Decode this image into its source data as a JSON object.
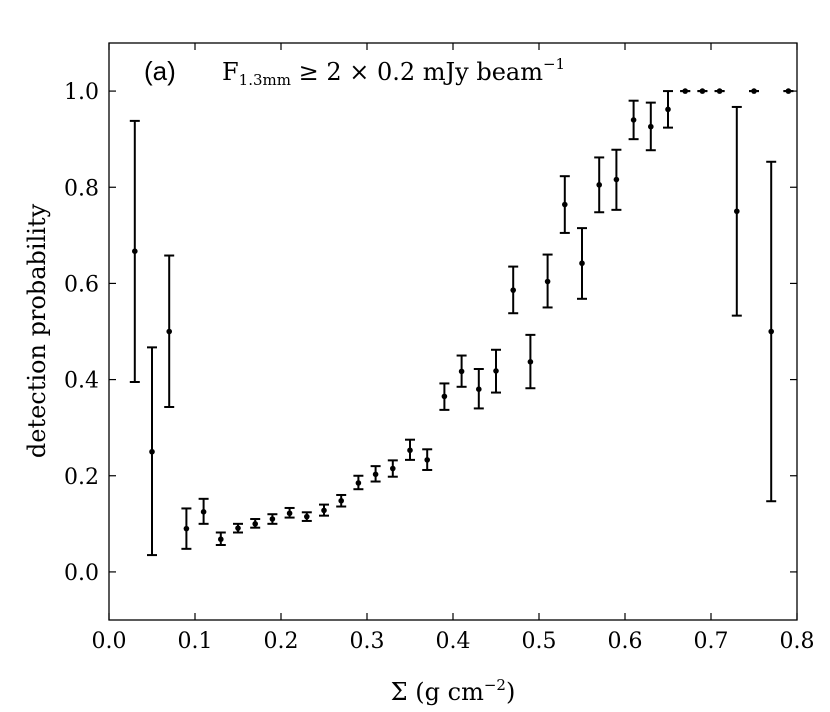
{
  "chart_data": {
    "type": "scatter",
    "panel_label": "(a)",
    "title": {
      "main": "F",
      "subscript": "1.3mm",
      "rest": " ≥ 2 × 0.2 mJy beam",
      "superscript": "−1"
    },
    "xlabel": {
      "main": "Σ (g cm",
      "superscript": "−2",
      "end": ")"
    },
    "ylabel": "detection probability",
    "xlim": [
      0.0,
      0.8
    ],
    "ylim": [
      -0.1,
      1.1
    ],
    "xticks": [
      "0.0",
      "0.1",
      "0.2",
      "0.3",
      "0.4",
      "0.5",
      "0.6",
      "0.7",
      "0.8"
    ],
    "yticks": [
      "0.0",
      "0.2",
      "0.4",
      "0.6",
      "0.8",
      "1.0"
    ],
    "grid": false,
    "series": [
      {
        "marker_color": "#000000",
        "points": [
          {
            "x": 0.03,
            "y": 0.667,
            "lo": 0.395,
            "hi": 0.938
          },
          {
            "x": 0.05,
            "y": 0.25,
            "lo": 0.035,
            "hi": 0.467
          },
          {
            "x": 0.07,
            "y": 0.5,
            "lo": 0.343,
            "hi": 0.658
          },
          {
            "x": 0.09,
            "y": 0.09,
            "lo": 0.048,
            "hi": 0.132
          },
          {
            "x": 0.11,
            "y": 0.125,
            "lo": 0.1,
            "hi": 0.152
          },
          {
            "x": 0.13,
            "y": 0.068,
            "lo": 0.056,
            "hi": 0.082
          },
          {
            "x": 0.15,
            "y": 0.091,
            "lo": 0.082,
            "hi": 0.1
          },
          {
            "x": 0.17,
            "y": 0.1,
            "lo": 0.092,
            "hi": 0.11
          },
          {
            "x": 0.19,
            "y": 0.11,
            "lo": 0.1,
            "hi": 0.12
          },
          {
            "x": 0.21,
            "y": 0.122,
            "lo": 0.113,
            "hi": 0.133
          },
          {
            "x": 0.23,
            "y": 0.115,
            "lo": 0.106,
            "hi": 0.124
          },
          {
            "x": 0.25,
            "y": 0.128,
            "lo": 0.117,
            "hi": 0.14
          },
          {
            "x": 0.27,
            "y": 0.148,
            "lo": 0.136,
            "hi": 0.16
          },
          {
            "x": 0.29,
            "y": 0.185,
            "lo": 0.172,
            "hi": 0.2
          },
          {
            "x": 0.31,
            "y": 0.203,
            "lo": 0.188,
            "hi": 0.22
          },
          {
            "x": 0.33,
            "y": 0.215,
            "lo": 0.198,
            "hi": 0.232
          },
          {
            "x": 0.35,
            "y": 0.253,
            "lo": 0.233,
            "hi": 0.275
          },
          {
            "x": 0.37,
            "y": 0.233,
            "lo": 0.212,
            "hi": 0.255
          },
          {
            "x": 0.39,
            "y": 0.365,
            "lo": 0.337,
            "hi": 0.392
          },
          {
            "x": 0.41,
            "y": 0.417,
            "lo": 0.385,
            "hi": 0.45
          },
          {
            "x": 0.43,
            "y": 0.38,
            "lo": 0.34,
            "hi": 0.422
          },
          {
            "x": 0.45,
            "y": 0.418,
            "lo": 0.373,
            "hi": 0.462
          },
          {
            "x": 0.47,
            "y": 0.586,
            "lo": 0.538,
            "hi": 0.635
          },
          {
            "x": 0.49,
            "y": 0.437,
            "lo": 0.382,
            "hi": 0.493
          },
          {
            "x": 0.51,
            "y": 0.604,
            "lo": 0.55,
            "hi": 0.66
          },
          {
            "x": 0.53,
            "y": 0.764,
            "lo": 0.705,
            "hi": 0.823
          },
          {
            "x": 0.55,
            "y": 0.642,
            "lo": 0.568,
            "hi": 0.715
          },
          {
            "x": 0.57,
            "y": 0.805,
            "lo": 0.748,
            "hi": 0.862
          },
          {
            "x": 0.59,
            "y": 0.816,
            "lo": 0.753,
            "hi": 0.878
          },
          {
            "x": 0.61,
            "y": 0.94,
            "lo": 0.9,
            "hi": 0.98
          },
          {
            "x": 0.63,
            "y": 0.926,
            "lo": 0.877,
            "hi": 0.976
          },
          {
            "x": 0.65,
            "y": 0.962,
            "lo": 0.924,
            "hi": 1.0
          },
          {
            "x": 0.67,
            "y": 1.0,
            "lo": 1.0,
            "hi": 1.0
          },
          {
            "x": 0.69,
            "y": 1.0,
            "lo": 1.0,
            "hi": 1.0
          },
          {
            "x": 0.71,
            "y": 1.0,
            "lo": 1.0,
            "hi": 1.0
          },
          {
            "x": 0.73,
            "y": 0.75,
            "lo": 0.533,
            "hi": 0.967
          },
          {
            "x": 0.75,
            "y": 1.0,
            "lo": 1.0,
            "hi": 1.0
          },
          {
            "x": 0.77,
            "y": 0.5,
            "lo": 0.147,
            "hi": 0.853
          },
          {
            "x": 0.79,
            "y": 1.0,
            "lo": 1.0,
            "hi": 1.0
          }
        ]
      }
    ]
  }
}
